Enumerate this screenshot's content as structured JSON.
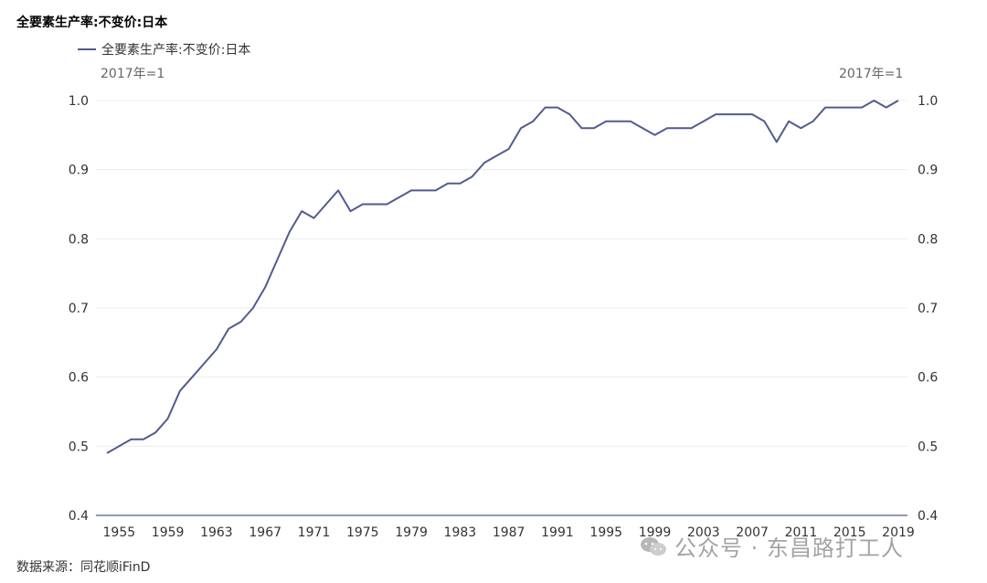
{
  "chart_data": {
    "type": "line",
    "title": "全要素生产率:不变价:日本",
    "legend": "全要素生产率:不变价:日本",
    "unit_left": "2017年=1",
    "unit_right": "2017年=1",
    "ylim": [
      0.4,
      1.0
    ],
    "yticks": [
      "1.0",
      "0.9",
      "0.8",
      "0.7",
      "0.6",
      "0.5",
      "0.4"
    ],
    "ytick_values": [
      1.0,
      0.9,
      0.8,
      0.7,
      0.6,
      0.5,
      0.4
    ],
    "xlabels": [
      "1955",
      "1959",
      "1963",
      "1967",
      "1971",
      "1975",
      "1979",
      "1983",
      "1987",
      "1991",
      "1995",
      "1999",
      "2003",
      "2007",
      "2011",
      "2015",
      "2019"
    ],
    "series": [
      {
        "name": "全要素生产率:不变价:日本",
        "color": "#4f5a9a",
        "x": [
          1954,
          1955,
          1956,
          1957,
          1958,
          1959,
          1960,
          1961,
          1962,
          1963,
          1964,
          1965,
          1966,
          1967,
          1968,
          1969,
          1970,
          1971,
          1972,
          1973,
          1974,
          1975,
          1976,
          1977,
          1978,
          1979,
          1980,
          1981,
          1982,
          1983,
          1984,
          1985,
          1986,
          1987,
          1988,
          1989,
          1990,
          1991,
          1992,
          1993,
          1994,
          1995,
          1996,
          1997,
          1998,
          1999,
          2000,
          2001,
          2002,
          2003,
          2004,
          2005,
          2006,
          2007,
          2008,
          2009,
          2010,
          2011,
          2012,
          2013,
          2014,
          2015,
          2016,
          2017,
          2018,
          2019
        ],
        "values": [
          0.49,
          0.5,
          0.51,
          0.51,
          0.52,
          0.54,
          0.58,
          0.6,
          0.62,
          0.64,
          0.67,
          0.68,
          0.7,
          0.73,
          0.77,
          0.81,
          0.84,
          0.83,
          0.85,
          0.87,
          0.84,
          0.85,
          0.85,
          0.85,
          0.86,
          0.87,
          0.87,
          0.87,
          0.88,
          0.88,
          0.89,
          0.91,
          0.92,
          0.93,
          0.96,
          0.97,
          0.99,
          0.99,
          0.98,
          0.96,
          0.96,
          0.97,
          0.97,
          0.97,
          0.96,
          0.95,
          0.96,
          0.96,
          0.96,
          0.97,
          0.98,
          0.98,
          0.98,
          0.98,
          0.97,
          0.94,
          0.97,
          0.96,
          0.97,
          0.99,
          0.99,
          0.99,
          0.99,
          1.0,
          0.99,
          1.0
        ]
      }
    ]
  },
  "source": "数据来源：同花顺iFinD",
  "watermark": "公众号 · 东昌路打工人"
}
